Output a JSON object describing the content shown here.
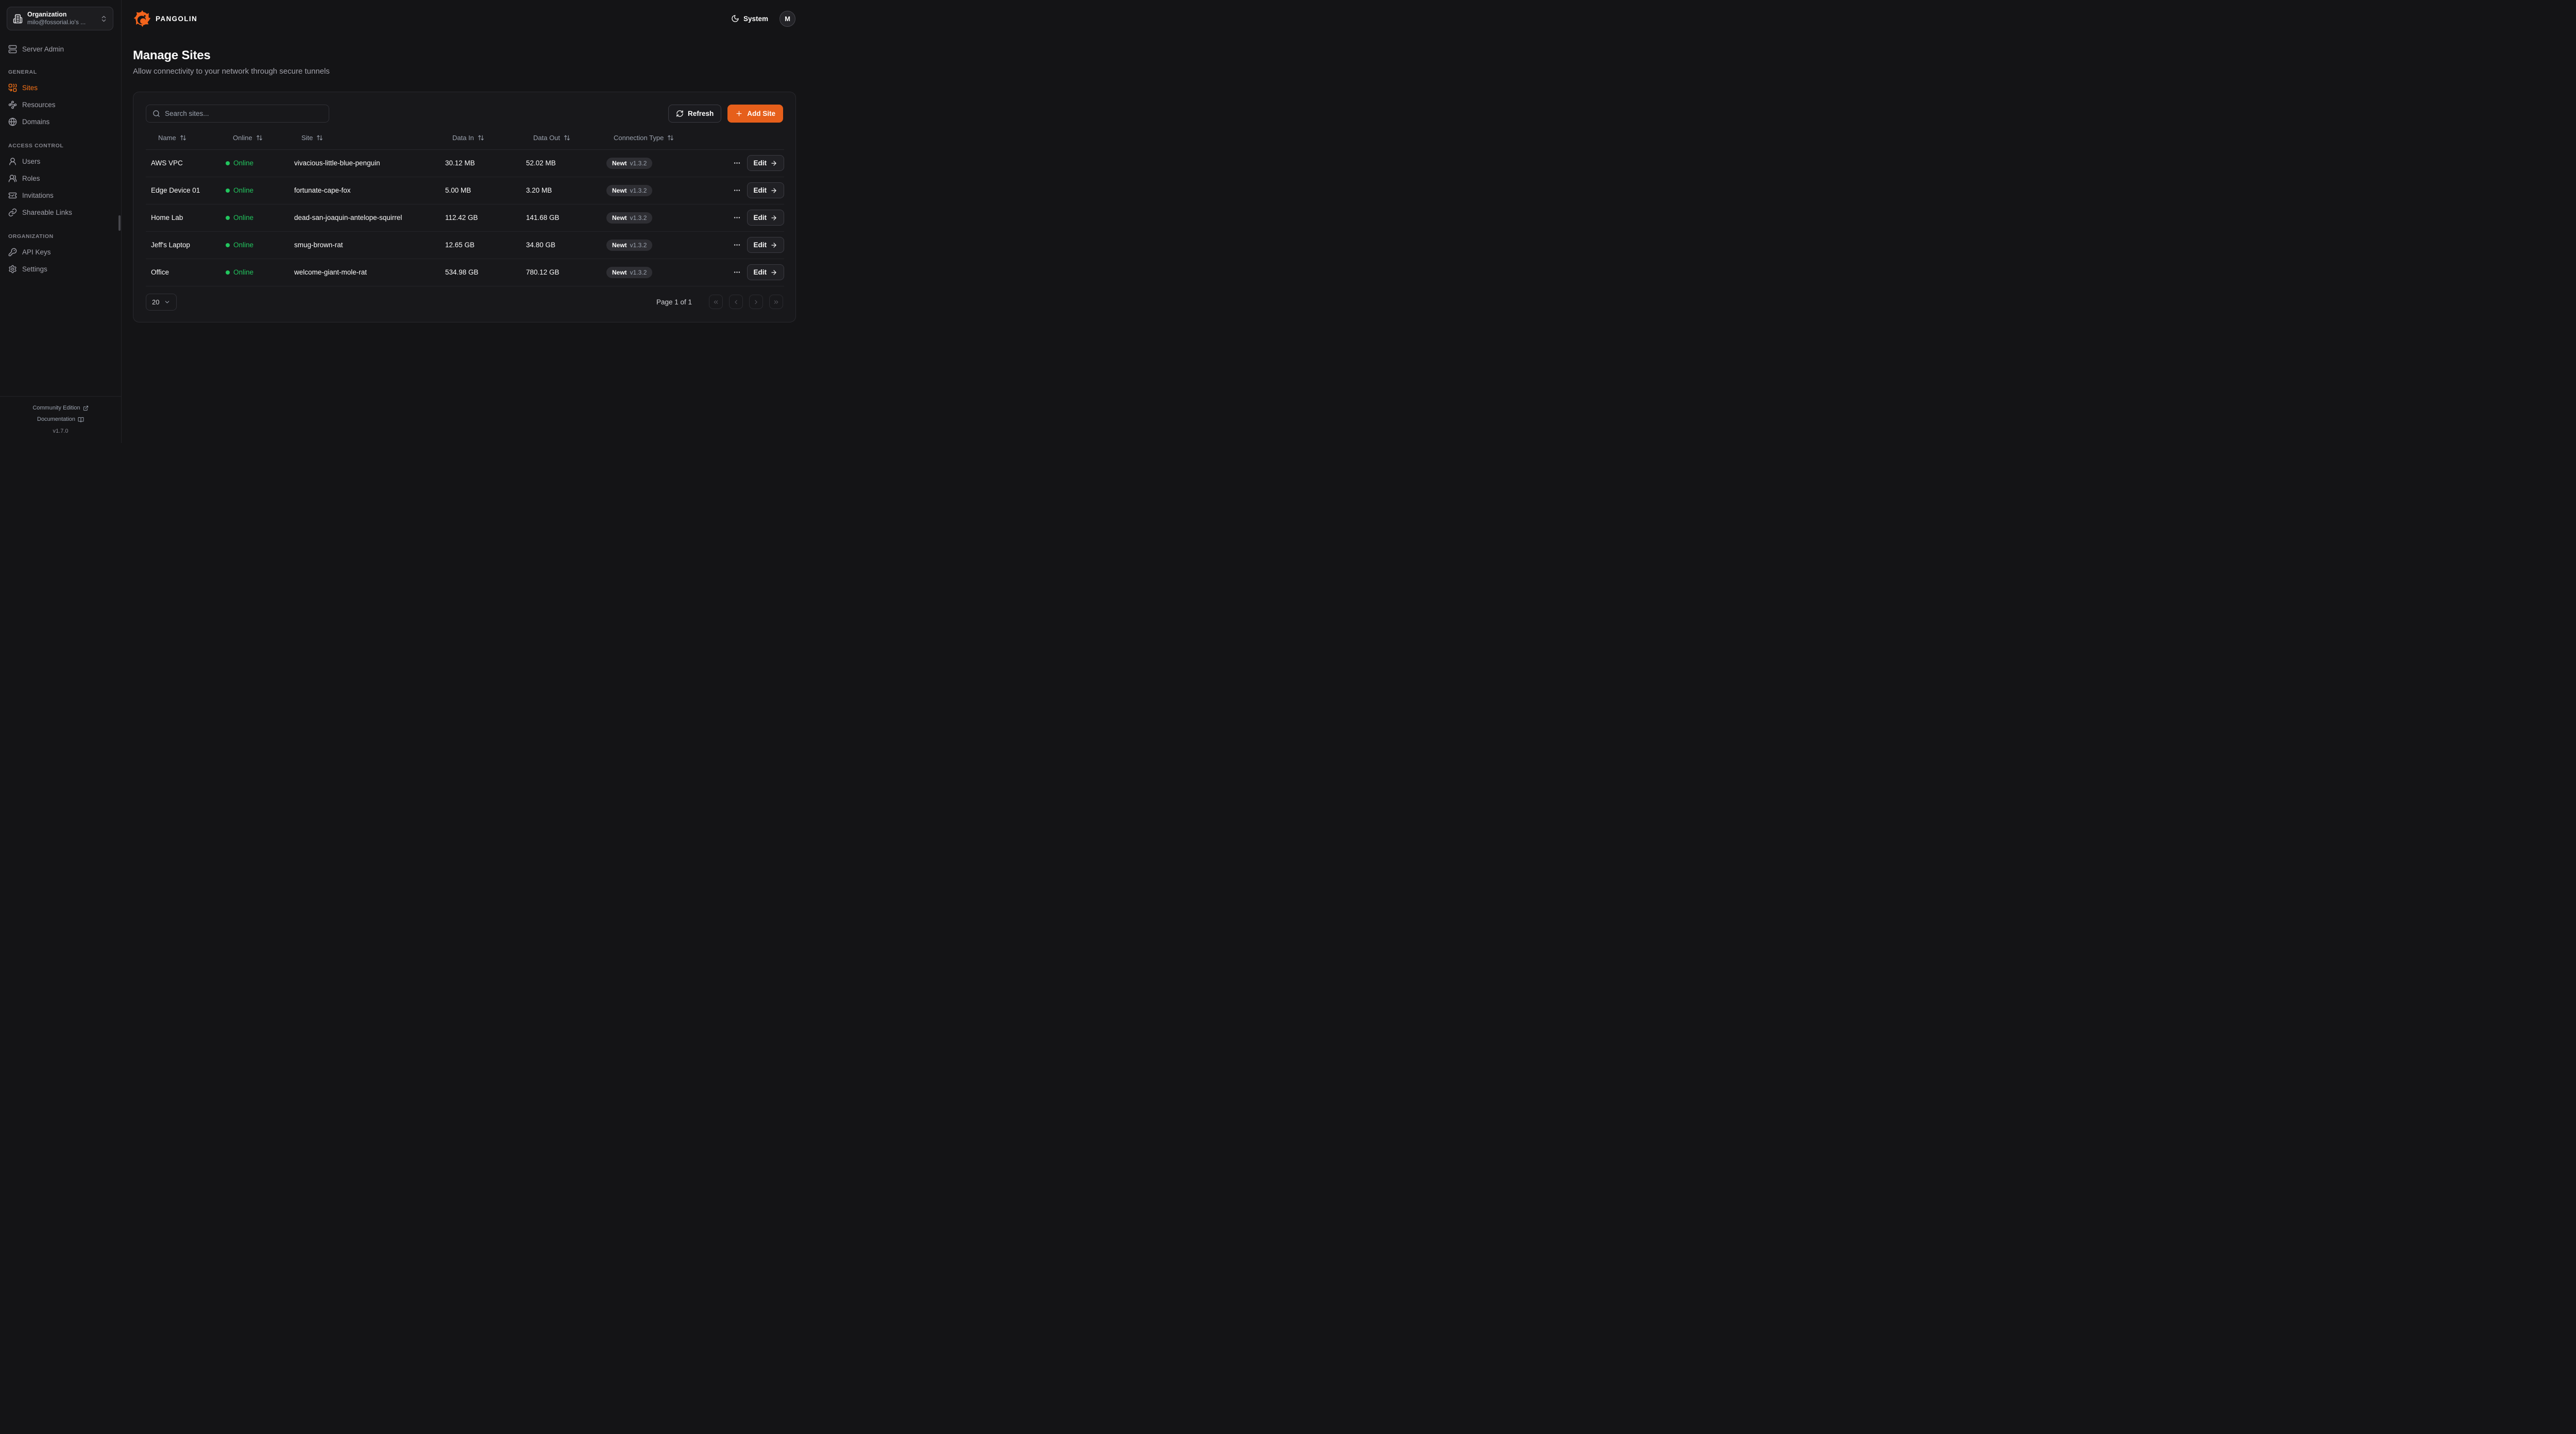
{
  "colors": {
    "accent_orange": "#e65f1b",
    "sidebar_active_orange": "#f97316",
    "online_green": "#22c55e",
    "badge_bg": "#2e2e33",
    "page_bg": "#141416",
    "card_bg": "#18181b"
  },
  "topbar": {
    "brand": "PANGOLIN",
    "theme_label": "System",
    "avatar_initial": "M"
  },
  "sidebar": {
    "org": {
      "title": "Organization",
      "subtitle": "milo@fossorial.io's ..."
    },
    "server_admin_label": "Server Admin",
    "sections": [
      {
        "heading": "GENERAL",
        "items": [
          {
            "label": "Sites",
            "icon": "combine-icon",
            "active": true
          },
          {
            "label": "Resources",
            "icon": "waypoints-icon",
            "active": false
          },
          {
            "label": "Domains",
            "icon": "globe-icon",
            "active": false
          }
        ]
      },
      {
        "heading": "ACCESS CONTROL",
        "items": [
          {
            "label": "Users",
            "icon": "user-icon",
            "active": false
          },
          {
            "label": "Roles",
            "icon": "users-icon",
            "active": false
          },
          {
            "label": "Invitations",
            "icon": "ticket-check-icon",
            "active": false
          },
          {
            "label": "Shareable Links",
            "icon": "link-icon",
            "active": false
          }
        ]
      },
      {
        "heading": "ORGANIZATION",
        "items": [
          {
            "label": "API Keys",
            "icon": "key-icon",
            "active": false
          },
          {
            "label": "Settings",
            "icon": "gear-icon",
            "active": false
          }
        ]
      }
    ],
    "footer": {
      "community_label": "Community Edition",
      "documentation_label": "Documentation",
      "version": "v1.7.0"
    }
  },
  "page": {
    "title": "Manage Sites",
    "subtitle": "Allow connectivity to your network through secure tunnels"
  },
  "table": {
    "search_placeholder": "Search sites...",
    "refresh_label": "Refresh",
    "add_site_label": "Add Site",
    "edit_label": "Edit",
    "columns": [
      "Name",
      "Online",
      "Site",
      "Data In",
      "Data Out",
      "Connection Type"
    ],
    "rows": [
      {
        "name": "AWS VPC",
        "status": "Online",
        "site": "vivacious-little-blue-penguin",
        "data_in": "30.12 MB",
        "data_out": "52.02 MB",
        "type": "Newt",
        "version": "v1.3.2"
      },
      {
        "name": "Edge Device 01",
        "status": "Online",
        "site": "fortunate-cape-fox",
        "data_in": "5.00 MB",
        "data_out": "3.20 MB",
        "type": "Newt",
        "version": "v1.3.2"
      },
      {
        "name": "Home Lab",
        "status": "Online",
        "site": "dead-san-joaquin-antelope-squirrel",
        "data_in": "112.42 GB",
        "data_out": "141.68 GB",
        "type": "Newt",
        "version": "v1.3.2"
      },
      {
        "name": "Jeff's Laptop",
        "status": "Online",
        "site": "smug-brown-rat",
        "data_in": "12.65 GB",
        "data_out": "34.80 GB",
        "type": "Newt",
        "version": "v1.3.2"
      },
      {
        "name": "Office",
        "status": "Online",
        "site": "welcome-giant-mole-rat",
        "data_in": "534.98 GB",
        "data_out": "780.12 GB",
        "type": "Newt",
        "version": "v1.3.2"
      }
    ],
    "pagination": {
      "page_size": "20",
      "page_info": "Page 1 of 1"
    }
  }
}
